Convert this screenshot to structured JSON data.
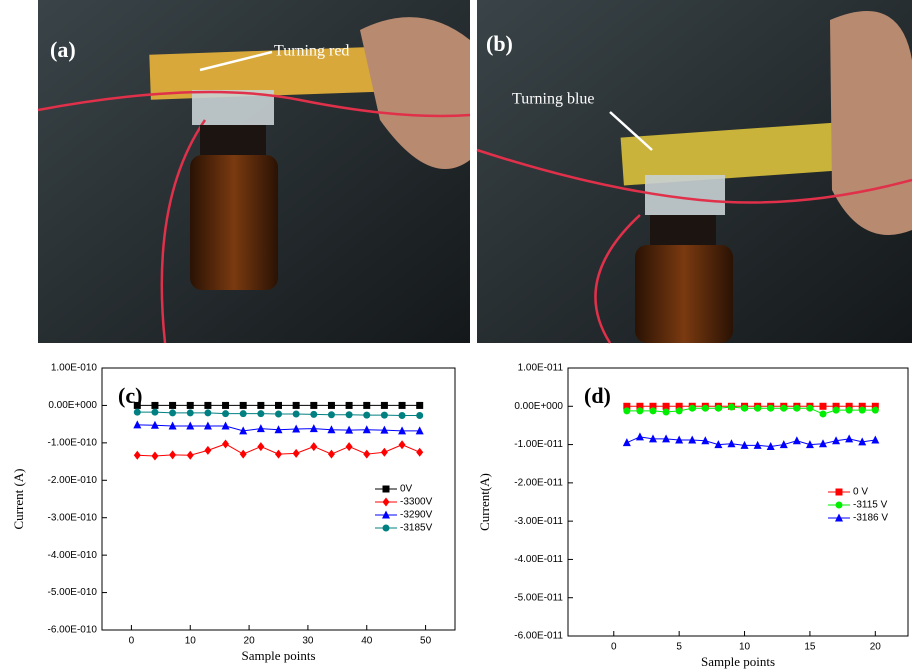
{
  "photos": [
    {
      "label": "(a)",
      "annotation": "Turning red"
    },
    {
      "label": "(b)",
      "annotation": "Turning blue"
    }
  ],
  "chart_data": [
    {
      "type": "line",
      "panel_label": "(c)",
      "x_label": "Sample points",
      "y_label": "Current (A)",
      "x": [
        1,
        4,
        7,
        10,
        13,
        16,
        19,
        22,
        25,
        28,
        31,
        34,
        37,
        40,
        43,
        46,
        49
      ],
      "xlim": [
        -5,
        55
      ],
      "xticks": [
        0,
        10,
        20,
        30,
        40,
        50
      ],
      "ylim": [
        -6e-10,
        1e-10
      ],
      "yticks": [
        {
          "value": 1e-10,
          "label": "1.00E-010"
        },
        {
          "value": 0,
          "label": "0.00E+000"
        },
        {
          "value": -1e-10,
          "label": "-1.00E-010"
        },
        {
          "value": -2e-10,
          "label": "-2.00E-010"
        },
        {
          "value": -3e-10,
          "label": "-3.00E-010"
        },
        {
          "value": -4e-10,
          "label": "-4.00E-010"
        },
        {
          "value": -5e-10,
          "label": "-5.00E-010"
        },
        {
          "value": -6e-10,
          "label": "-6.00E-010"
        }
      ],
      "legend": "right",
      "grid": false,
      "series": [
        {
          "name": "0V",
          "color": "#000000",
          "marker": "square",
          "values": [
            0,
            0,
            0,
            0,
            0,
            0,
            0,
            0,
            0,
            0,
            0,
            0,
            0,
            0,
            0,
            0,
            0
          ]
        },
        {
          "name": "-3300V",
          "color": "#ff0000",
          "marker": "diamond",
          "values": [
            -1.33e-10,
            -1.35e-10,
            -1.32e-10,
            -1.33e-10,
            -1.2e-10,
            -1.03e-10,
            -1.3e-10,
            -1.1e-10,
            -1.3e-10,
            -1.28e-10,
            -1.1e-10,
            -1.3e-10,
            -1.1e-10,
            -1.3e-10,
            -1.25e-10,
            -1.05e-10,
            -1.25e-10
          ]
        },
        {
          "name": "-3290V",
          "color": "#0000ff",
          "marker": "triangle",
          "values": [
            -5.2e-11,
            -5.3e-11,
            -5.5e-11,
            -5.5e-11,
            -5.5e-11,
            -5.5e-11,
            -6.8e-11,
            -6.2e-11,
            -6.5e-11,
            -6.3e-11,
            -6.2e-11,
            -6.5e-11,
            -6.6e-11,
            -6.5e-11,
            -6.6e-11,
            -6.8e-11,
            -6.8e-11
          ]
        },
        {
          "name": "-3185V",
          "color": "#008080",
          "marker": "circle",
          "values": [
            -1.8e-11,
            -1.8e-11,
            -2e-11,
            -2e-11,
            -2e-11,
            -2.2e-11,
            -2.2e-11,
            -2.2e-11,
            -2.3e-11,
            -2.3e-11,
            -2.4e-11,
            -2.5e-11,
            -2.5e-11,
            -2.6e-11,
            -2.6e-11,
            -2.7e-11,
            -2.7e-11
          ]
        }
      ]
    },
    {
      "type": "line",
      "panel_label": "(d)",
      "x_label": "Sample points",
      "y_label": "Current(A)",
      "x": [
        1,
        2,
        3,
        4,
        5,
        6,
        7,
        8,
        9,
        10,
        11,
        12,
        13,
        14,
        15,
        16,
        17,
        18,
        19,
        20
      ],
      "xlim": [
        -3.5,
        22.5
      ],
      "xticks": [
        0,
        5,
        10,
        15,
        20
      ],
      "ylim": [
        -6e-11,
        1e-11
      ],
      "yticks": [
        {
          "value": 1e-11,
          "label": "1.00E-011"
        },
        {
          "value": 0,
          "label": "0.00E+000"
        },
        {
          "value": -1e-11,
          "label": "-1.00E-011"
        },
        {
          "value": -2e-11,
          "label": "-2.00E-011"
        },
        {
          "value": -3e-11,
          "label": "-3.00E-011"
        },
        {
          "value": -4e-11,
          "label": "-4.00E-011"
        },
        {
          "value": -5e-11,
          "label": "-5.00E-011"
        },
        {
          "value": -6e-11,
          "label": "-6.00E-011"
        }
      ],
      "legend": "right",
      "grid": false,
      "series": [
        {
          "name": "0 V",
          "color": "#ff0000",
          "marker": "square",
          "values": [
            0,
            0,
            0,
            0,
            0,
            0,
            0,
            0,
            0,
            0,
            0,
            0,
            0,
            0,
            0,
            0,
            0,
            0,
            0,
            0
          ]
        },
        {
          "name": "-3115 V",
          "color": "#00ee00",
          "marker": "circle",
          "values": [
            -1.2e-12,
            -1.2e-12,
            -1.2e-12,
            -1.5e-12,
            -1.2e-12,
            -5e-13,
            -5e-13,
            -5e-13,
            -2e-13,
            -5e-13,
            -5e-13,
            -5e-13,
            -5e-13,
            -5e-13,
            -5e-13,
            -2e-12,
            -1e-12,
            -1e-12,
            -1e-12,
            -1e-12
          ]
        },
        {
          "name": "-3186 V",
          "color": "#0000ff",
          "marker": "triangle",
          "values": [
            -9.5e-12,
            -8e-12,
            -8.5e-12,
            -8.5e-12,
            -8.8e-12,
            -8.8e-12,
            -9e-12,
            -1e-11,
            -9.8e-12,
            -1.02e-11,
            -1.02e-11,
            -1.05e-11,
            -1e-11,
            -9e-12,
            -1e-11,
            -9.8e-12,
            -9e-12,
            -8.5e-12,
            -9.3e-12,
            -8.8e-12
          ]
        }
      ]
    }
  ]
}
